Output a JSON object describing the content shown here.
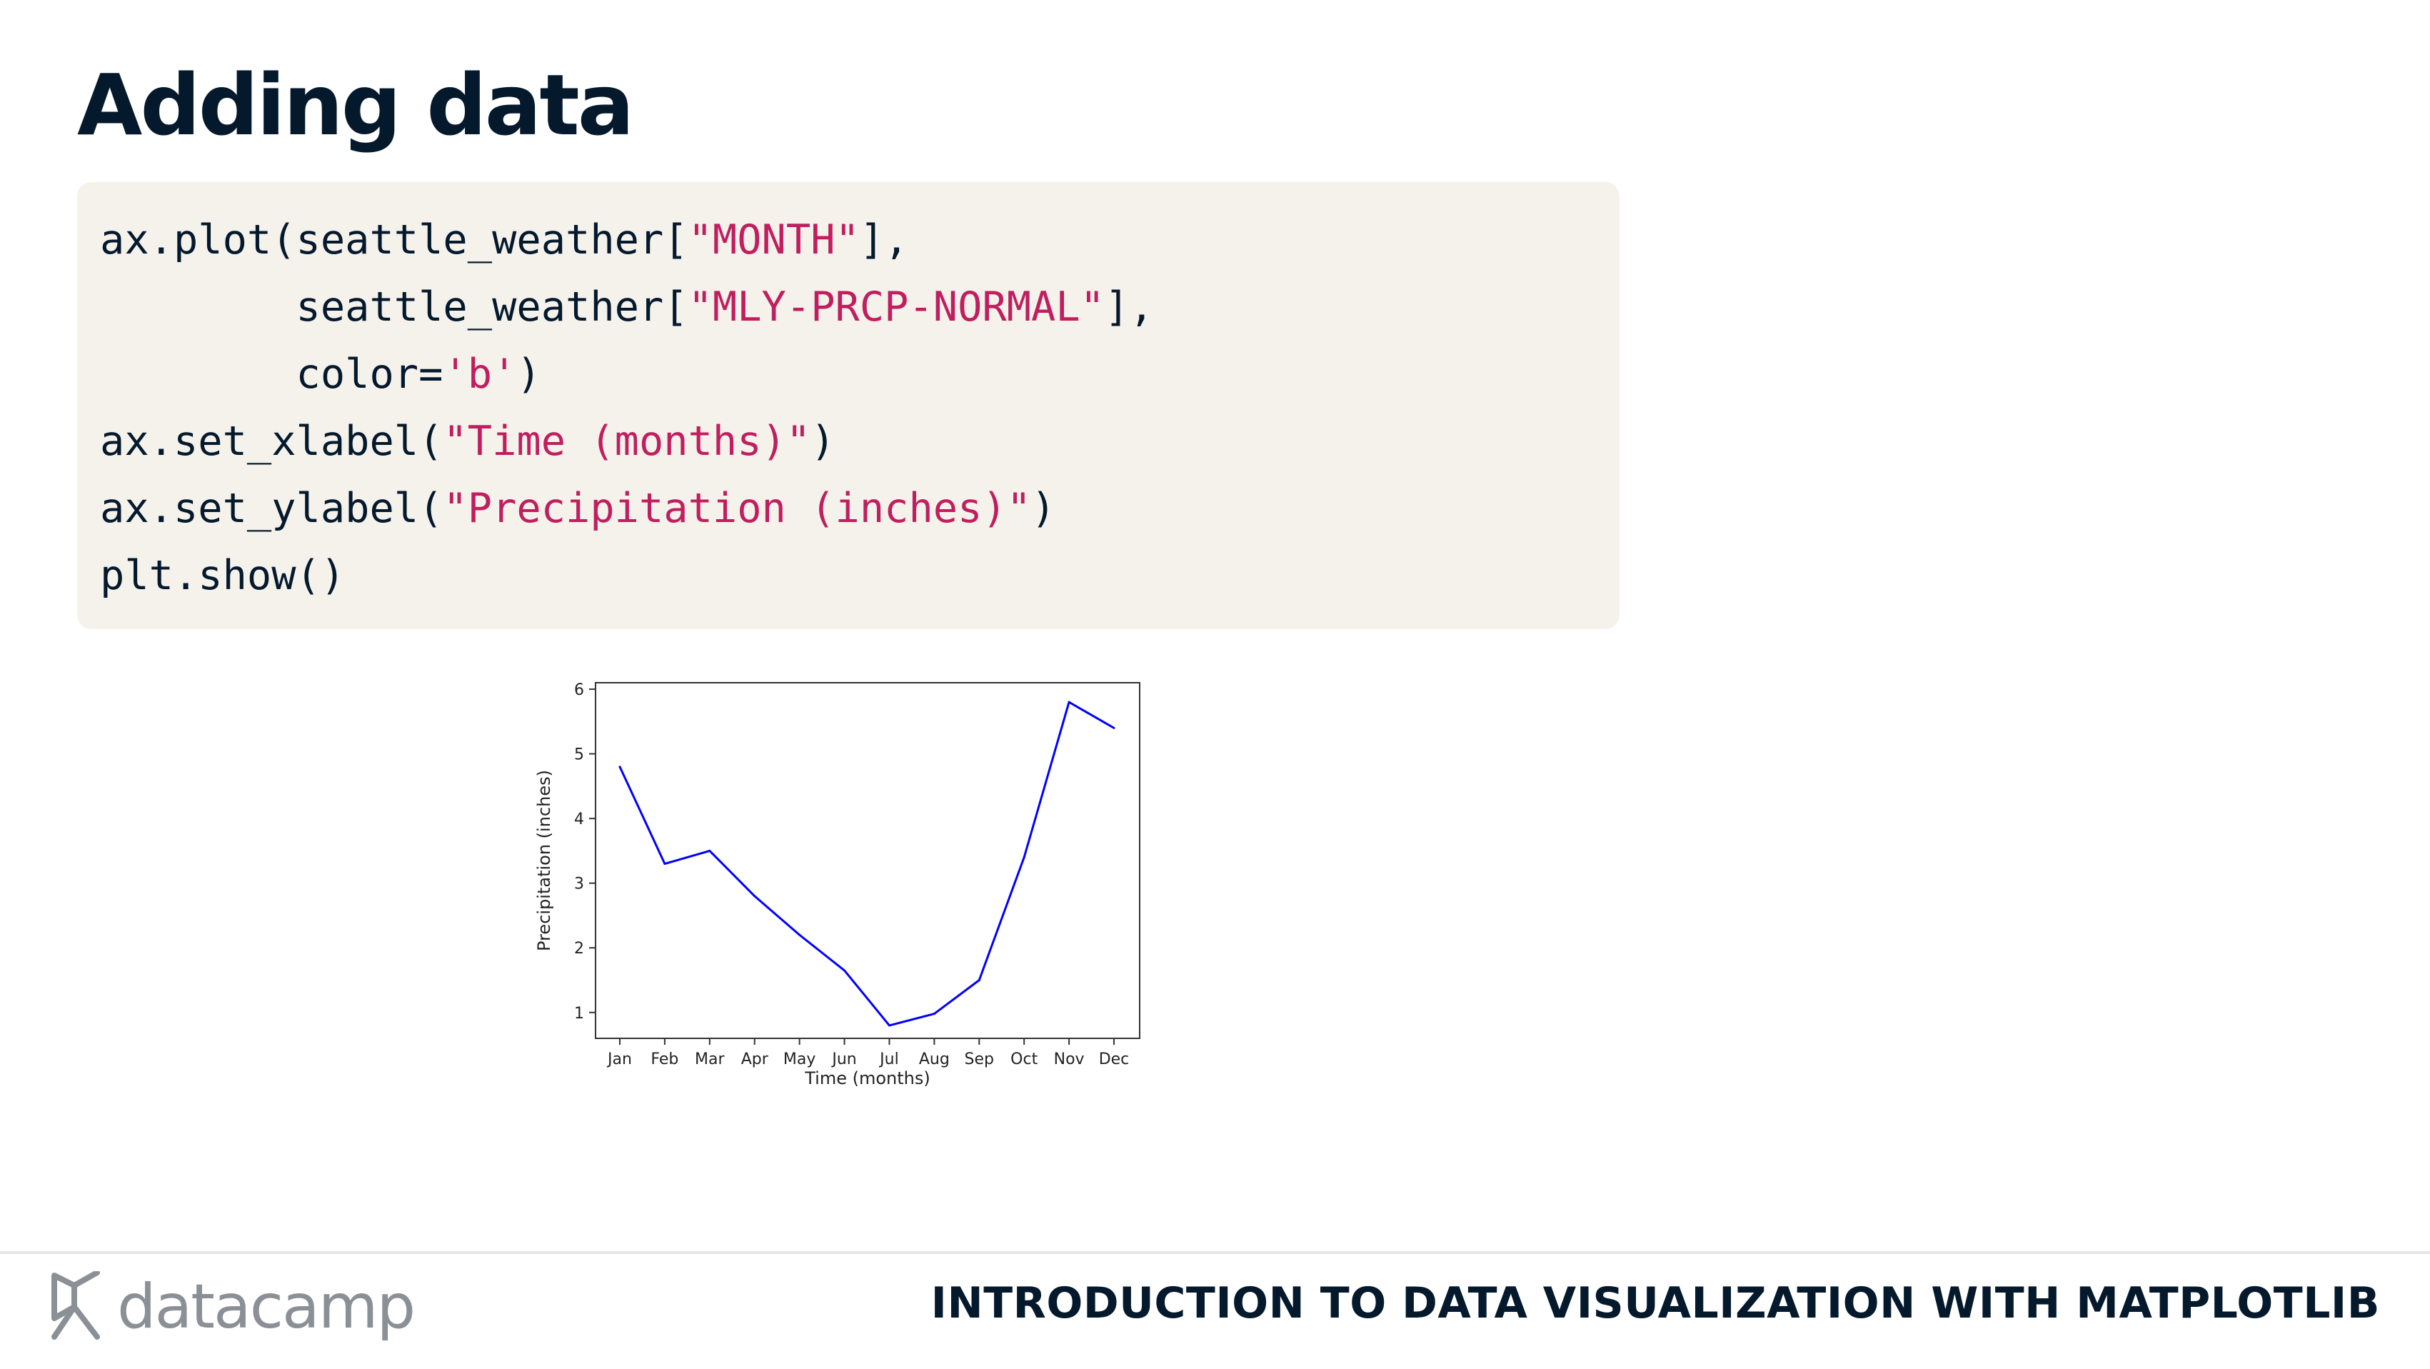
{
  "slide": {
    "title": "Adding data"
  },
  "code": {
    "line1": {
      "p1": "ax.plot(seattle_weather[",
      "s1": "\"MONTH\"",
      "p2": "],"
    },
    "line2": {
      "p1": "        seattle_weather[",
      "s1": "\"MLY-PRCP-NORMAL\"",
      "p2": "],"
    },
    "line3": {
      "p1": "        color=",
      "s1": "'b'",
      "p2": ")"
    },
    "line4": {
      "p1": "ax.set_xlabel(",
      "s1": "\"Time (months)\"",
      "p2": ")"
    },
    "line5": {
      "p1": "ax.set_ylabel(",
      "s1": "\"Precipitation (inches)\"",
      "p2": ")"
    },
    "line6": {
      "p1": "plt.show()"
    }
  },
  "chart_data": {
    "type": "line",
    "categories": [
      "Jan",
      "Feb",
      "Mar",
      "Apr",
      "May",
      "Jun",
      "Jul",
      "Aug",
      "Sep",
      "Oct",
      "Nov",
      "Dec"
    ],
    "values": [
      4.8,
      3.3,
      3.5,
      2.8,
      2.2,
      1.65,
      0.8,
      0.98,
      1.5,
      3.4,
      5.8,
      5.4
    ],
    "xlabel": "Time (months)",
    "ylabel": "Precipitation (inches)",
    "yticks": [
      1,
      2,
      3,
      4,
      5,
      6
    ],
    "ylim": [
      0.6,
      6.1
    ],
    "line_color": "#0000ff",
    "grid": false,
    "legend": "none"
  },
  "footer": {
    "brand": "datacamp",
    "logo_icon": "datacamp-logo-icon",
    "course_title": "INTRODUCTION TO DATA VISUALIZATION WITH MATPLOTLIB"
  },
  "colors": {
    "title_text": "#05192d",
    "code_background": "#f5f2ec",
    "code_string": "#c01e5e",
    "brand_grey": "#8a9095"
  }
}
